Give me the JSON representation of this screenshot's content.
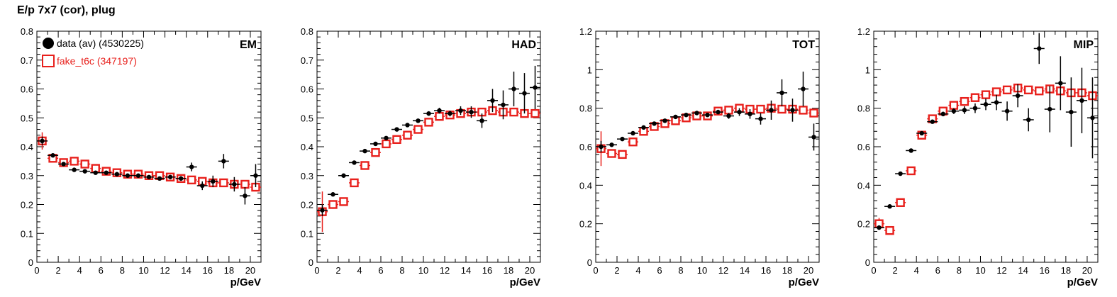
{
  "page": {
    "title": "E/p 7x7 (cor), plug"
  },
  "legend": {
    "entries": [
      {
        "label": "data (av) (4530225)",
        "color": "#000000",
        "marker": "filled-circle"
      },
      {
        "label": "fake_t6c (347197)",
        "color": "#e8201c",
        "marker": "open-square"
      }
    ]
  },
  "chart_data": [
    {
      "type": "scatter",
      "label": "EM",
      "xlabel": "p/GeV",
      "xlim": [
        0,
        21
      ],
      "ylim": [
        0,
        0.8
      ],
      "xticks": [
        0,
        2,
        4,
        6,
        8,
        10,
        12,
        14,
        16,
        18,
        20
      ],
      "yticks": [
        0,
        0.1,
        0.2,
        0.3,
        0.4,
        0.5,
        0.6,
        0.7,
        0.8
      ],
      "yticklabels": [
        "0",
        "0.1",
        "0.2",
        "0.3",
        "0.4",
        "0.5",
        "0.6",
        "0.7",
        "0.8"
      ],
      "x": [
        0.5,
        1.5,
        2.5,
        3.5,
        4.5,
        5.5,
        6.5,
        7.5,
        8.5,
        9.5,
        10.5,
        11.5,
        12.5,
        13.5,
        14.5,
        15.5,
        16.5,
        17.5,
        18.5,
        19.5,
        20.5
      ],
      "series": [
        {
          "name": "data (av) (4530225)",
          "values": [
            0.42,
            0.37,
            0.34,
            0.32,
            0.315,
            0.31,
            0.31,
            0.305,
            0.3,
            0.3,
            0.295,
            0.29,
            0.295,
            0.29,
            0.33,
            0.265,
            0.28,
            0.35,
            0.27,
            0.23,
            0.3
          ],
          "errors": [
            0.015,
            0.005,
            0.005,
            0.005,
            0.005,
            0.005,
            0.005,
            0.005,
            0.005,
            0.005,
            0.005,
            0.005,
            0.007,
            0.008,
            0.015,
            0.015,
            0.02,
            0.025,
            0.025,
            0.03,
            0.04
          ]
        },
        {
          "name": "fake_t6c (347197)",
          "values": [
            0.42,
            0.36,
            0.345,
            0.35,
            0.34,
            0.325,
            0.315,
            0.31,
            0.305,
            0.305,
            0.3,
            0.3,
            0.295,
            0.29,
            0.285,
            0.28,
            0.275,
            0.275,
            0.27,
            0.27,
            0.26
          ],
          "errors": [
            0.03,
            0.01,
            0.008,
            0.007,
            0.006,
            0.006,
            0.006,
            0.006,
            0.006,
            0.006,
            0.006,
            0.006,
            0.006,
            0.006,
            0.006,
            0.006,
            0.006,
            0.006,
            0.006,
            0.006,
            0.006
          ]
        }
      ]
    },
    {
      "type": "scatter",
      "label": "HAD",
      "xlabel": "p/GeV",
      "xlim": [
        0,
        21
      ],
      "ylim": [
        0,
        0.8
      ],
      "xticks": [
        0,
        2,
        4,
        6,
        8,
        10,
        12,
        14,
        16,
        18,
        20
      ],
      "yticks": [
        0,
        0.1,
        0.2,
        0.3,
        0.4,
        0.5,
        0.6,
        0.7,
        0.8
      ],
      "yticklabels": [
        "0",
        "0.1",
        "0.2",
        "0.3",
        "0.4",
        "0.5",
        "0.6",
        "0.7",
        "0.8"
      ],
      "x": [
        0.5,
        1.5,
        2.5,
        3.5,
        4.5,
        5.5,
        6.5,
        7.5,
        8.5,
        9.5,
        10.5,
        11.5,
        12.5,
        13.5,
        14.5,
        15.5,
        16.5,
        17.5,
        18.5,
        19.5,
        20.5
      ],
      "series": [
        {
          "name": "data (av) (4530225)",
          "values": [
            0.18,
            0.235,
            0.3,
            0.345,
            0.385,
            0.41,
            0.43,
            0.46,
            0.475,
            0.49,
            0.515,
            0.525,
            0.515,
            0.525,
            0.52,
            0.49,
            0.56,
            0.545,
            0.6,
            0.585,
            0.605
          ],
          "errors": [
            0.02,
            0.005,
            0.005,
            0.005,
            0.005,
            0.005,
            0.005,
            0.005,
            0.005,
            0.005,
            0.008,
            0.01,
            0.01,
            0.015,
            0.02,
            0.025,
            0.04,
            0.05,
            0.06,
            0.07,
            0.075
          ]
        },
        {
          "name": "fake_t6c (347197)",
          "values": [
            0.175,
            0.2,
            0.21,
            0.275,
            0.335,
            0.38,
            0.41,
            0.425,
            0.44,
            0.46,
            0.485,
            0.505,
            0.51,
            0.515,
            0.52,
            0.52,
            0.525,
            0.52,
            0.52,
            0.515,
            0.515
          ],
          "errors": [
            0.07,
            0.015,
            0.01,
            0.008,
            0.008,
            0.008,
            0.008,
            0.008,
            0.008,
            0.008,
            0.008,
            0.008,
            0.008,
            0.008,
            0.008,
            0.008,
            0.008,
            0.008,
            0.008,
            0.008,
            0.008
          ]
        }
      ]
    },
    {
      "type": "scatter",
      "label": "TOT",
      "xlabel": "p/GeV",
      "xlim": [
        0,
        21
      ],
      "ylim": [
        0,
        1.2
      ],
      "xticks": [
        0,
        2,
        4,
        6,
        8,
        10,
        12,
        14,
        16,
        18,
        20
      ],
      "yticks": [
        0,
        0.2,
        0.4,
        0.6,
        0.8,
        1.0,
        1.2
      ],
      "yticklabels": [
        "0",
        "0.2",
        "0.4",
        "0.6",
        "0.8",
        "1",
        "1.2"
      ],
      "x": [
        0.5,
        1.5,
        2.5,
        3.5,
        4.5,
        5.5,
        6.5,
        7.5,
        8.5,
        9.5,
        10.5,
        11.5,
        12.5,
        13.5,
        14.5,
        15.5,
        16.5,
        17.5,
        18.5,
        19.5,
        20.5
      ],
      "series": [
        {
          "name": "data (av) (4530225)",
          "values": [
            0.6,
            0.61,
            0.64,
            0.67,
            0.7,
            0.72,
            0.735,
            0.755,
            0.765,
            0.775,
            0.765,
            0.78,
            0.76,
            0.78,
            0.77,
            0.745,
            0.79,
            0.88,
            0.79,
            0.9,
            0.65
          ],
          "errors": [
            0.03,
            0.008,
            0.006,
            0.006,
            0.006,
            0.006,
            0.006,
            0.006,
            0.006,
            0.008,
            0.01,
            0.012,
            0.015,
            0.02,
            0.025,
            0.03,
            0.05,
            0.07,
            0.06,
            0.09,
            0.07
          ]
        },
        {
          "name": "fake_t6c (347197)",
          "values": [
            0.59,
            0.565,
            0.56,
            0.625,
            0.68,
            0.705,
            0.72,
            0.735,
            0.75,
            0.76,
            0.76,
            0.785,
            0.79,
            0.8,
            0.795,
            0.795,
            0.8,
            0.795,
            0.795,
            0.79,
            0.775
          ],
          "errors": [
            0.09,
            0.02,
            0.012,
            0.01,
            0.01,
            0.01,
            0.01,
            0.01,
            0.01,
            0.01,
            0.01,
            0.01,
            0.01,
            0.01,
            0.01,
            0.01,
            0.01,
            0.01,
            0.01,
            0.01,
            0.01
          ]
        }
      ]
    },
    {
      "type": "scatter",
      "label": "MIP",
      "xlabel": "p/GeV",
      "xlim": [
        0,
        21
      ],
      "ylim": [
        0,
        1.2
      ],
      "xticks": [
        0,
        2,
        4,
        6,
        8,
        10,
        12,
        14,
        16,
        18,
        20
      ],
      "yticks": [
        0,
        0.2,
        0.4,
        0.6,
        0.8,
        1.0,
        1.2
      ],
      "yticklabels": [
        "0",
        "0.2",
        "0.4",
        "0.6",
        "0.8",
        "1",
        "1.2"
      ],
      "x": [
        0.5,
        1.5,
        2.5,
        3.5,
        4.5,
        5.5,
        6.5,
        7.5,
        8.5,
        9.5,
        10.5,
        11.5,
        12.5,
        13.5,
        14.5,
        15.5,
        16.5,
        17.5,
        18.5,
        19.5,
        20.5
      ],
      "series": [
        {
          "name": "data (av) (4530225)",
          "values": [
            0.18,
            0.29,
            0.46,
            0.58,
            0.67,
            0.73,
            0.77,
            0.785,
            0.79,
            0.8,
            0.82,
            0.83,
            0.785,
            0.865,
            0.74,
            1.11,
            0.795,
            0.93,
            0.78,
            0.84,
            0.75
          ],
          "errors": [
            0.005,
            0.005,
            0.005,
            0.006,
            0.008,
            0.01,
            0.012,
            0.015,
            0.02,
            0.025,
            0.03,
            0.04,
            0.05,
            0.06,
            0.06,
            0.08,
            0.12,
            0.14,
            0.18,
            0.17,
            0.21
          ]
        },
        {
          "name": "fake_t6c (347197)",
          "values": [
            0.2,
            0.165,
            0.31,
            0.475,
            0.66,
            0.745,
            0.785,
            0.815,
            0.835,
            0.855,
            0.87,
            0.885,
            0.895,
            0.905,
            0.895,
            0.89,
            0.9,
            0.89,
            0.88,
            0.88,
            0.865
          ],
          "errors": [
            0.03,
            0.015,
            0.01,
            0.01,
            0.01,
            0.01,
            0.01,
            0.01,
            0.01,
            0.01,
            0.01,
            0.01,
            0.01,
            0.01,
            0.01,
            0.01,
            0.01,
            0.01,
            0.01,
            0.01,
            0.01
          ]
        }
      ]
    }
  ]
}
